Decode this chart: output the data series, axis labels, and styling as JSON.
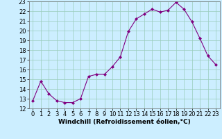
{
  "xlabel": "Windchill (Refroidissement éolien,°C)",
  "x": [
    0,
    1,
    2,
    3,
    4,
    5,
    6,
    7,
    8,
    9,
    10,
    11,
    12,
    13,
    14,
    15,
    16,
    17,
    18,
    19,
    20,
    21,
    22,
    23
  ],
  "y": [
    12.8,
    14.8,
    13.5,
    12.8,
    12.6,
    12.6,
    13.0,
    15.3,
    15.5,
    15.5,
    16.3,
    17.3,
    19.9,
    21.2,
    21.7,
    22.2,
    21.9,
    22.1,
    22.9,
    22.2,
    20.9,
    19.2,
    17.4,
    16.5
  ],
  "ylim": [
    12,
    23
  ],
  "yticks": [
    12,
    13,
    14,
    15,
    16,
    17,
    18,
    19,
    20,
    21,
    22,
    23
  ],
  "line_color": "#800080",
  "marker_color": "#800080",
  "bg_color": "#cceeff",
  "grid_color": "#99ccbb",
  "xlabel_fontsize": 6.5,
  "tick_fontsize": 6.0
}
